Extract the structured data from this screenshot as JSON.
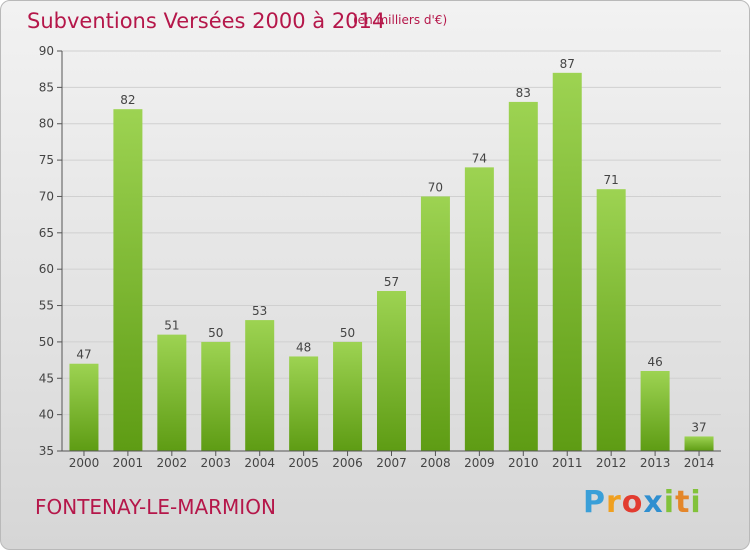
{
  "header": {
    "title": "Subventions Versées 2000 à 2014",
    "unit": "(en milliers d'€)"
  },
  "footer": {
    "commune": "FONTENAY-LE-MARMION",
    "brand": "Proxiti"
  },
  "colors": {
    "title": "#b5174a",
    "bar_light": "#9dd352",
    "bar_dark": "#5e9c14",
    "grid": "#d0d0d0",
    "axis": "#555555"
  },
  "chart_data": {
    "type": "bar",
    "title": "Subventions Versées 2000 à 2014",
    "subtitle": "(en milliers d'€)",
    "categories": [
      "2000",
      "2001",
      "2002",
      "2003",
      "2004",
      "2005",
      "2006",
      "2007",
      "2008",
      "2009",
      "2010",
      "2011",
      "2012",
      "2013",
      "2014"
    ],
    "values": [
      47,
      82,
      51,
      50,
      53,
      48,
      50,
      57,
      70,
      74,
      83,
      87,
      71,
      46,
      37
    ],
    "ylim": [
      35,
      90
    ],
    "yticks": [
      35,
      40,
      45,
      50,
      55,
      60,
      65,
      70,
      75,
      80,
      85,
      90
    ],
    "grid": true,
    "data_labels": true,
    "xlabel": "",
    "ylabel": ""
  }
}
